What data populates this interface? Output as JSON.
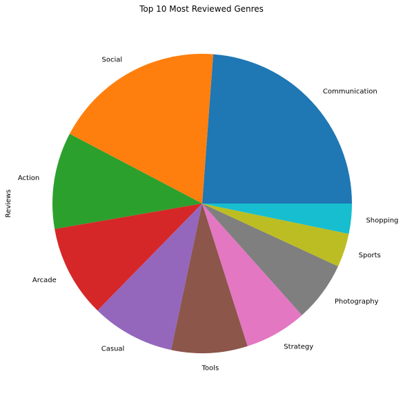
{
  "chart_data": {
    "type": "pie",
    "title": "Top 10 Most Reviewed Genres",
    "ylabel": "Reviews",
    "xlabel": "",
    "categories": [
      "Communication",
      "Social",
      "Action",
      "Arcade",
      "Casual",
      "Tools",
      "Strategy",
      "Photography",
      "Sports",
      "Shopping"
    ],
    "values": [
      24.9,
      19.3,
      10.9,
      10.4,
      9.4,
      8.6,
      7.0,
      6.8,
      3.8,
      3.4
    ],
    "colors": [
      "#1f77b4",
      "#ff7f0e",
      "#2ca02c",
      "#d62728",
      "#9467bd",
      "#8c564b",
      "#e377c2",
      "#7f7f7f",
      "#bcbd22",
      "#17becf"
    ],
    "start_angle": "3 o'clock",
    "direction": "counterclockwise",
    "legend": "none",
    "grid": false
  }
}
